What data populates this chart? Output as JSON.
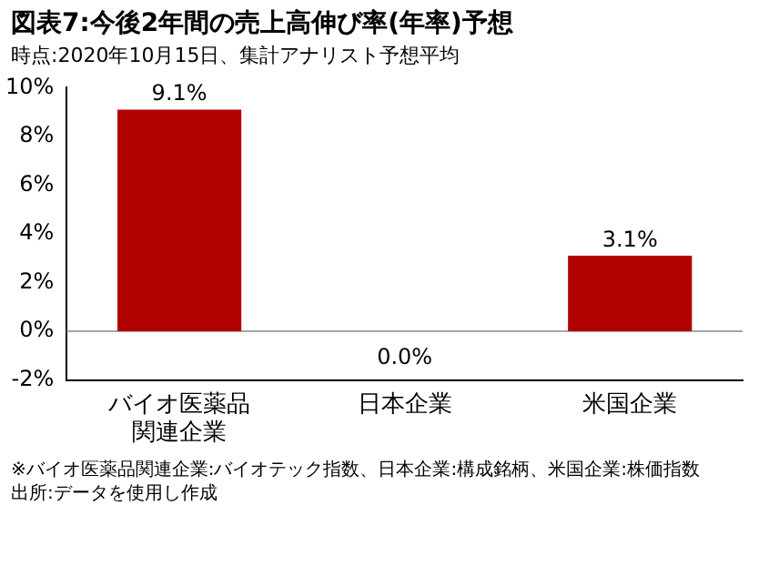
{
  "chart_data": {
    "type": "bar",
    "title": "図表7:今後2年間の売上高伸び率(年率)予想",
    "subtitle": "時点:2020年10月15日、集計アナリスト予想平均",
    "categories": [
      "バイオ医薬品関連企業",
      "日本企業",
      "米国企業"
    ],
    "values": [
      9.1,
      0.0,
      3.1
    ],
    "value_labels": [
      "9.1%",
      "0.0%",
      "3.1%"
    ],
    "color": "#b00000",
    "ylim": [
      -2,
      10
    ],
    "yticks": [
      {
        "value": -2,
        "label": "-2%"
      },
      {
        "value": 0,
        "label": "0%"
      },
      {
        "value": 2,
        "label": "2%"
      },
      {
        "value": 4,
        "label": "4%"
      },
      {
        "value": 6,
        "label": "6%"
      },
      {
        "value": 8,
        "label": "8%"
      },
      {
        "value": 10,
        "label": "10%"
      }
    ],
    "ref_lines": [
      {
        "axis": "y",
        "value": 0,
        "color": "#a6a6a6"
      }
    ],
    "grid": false,
    "legend": false,
    "annotations": [
      "※バイオ医薬品関連企業:バイオテック指数、日本企業:構成銘柄、米国企業:株価指数",
      "出所:データを使用し作成"
    ]
  }
}
